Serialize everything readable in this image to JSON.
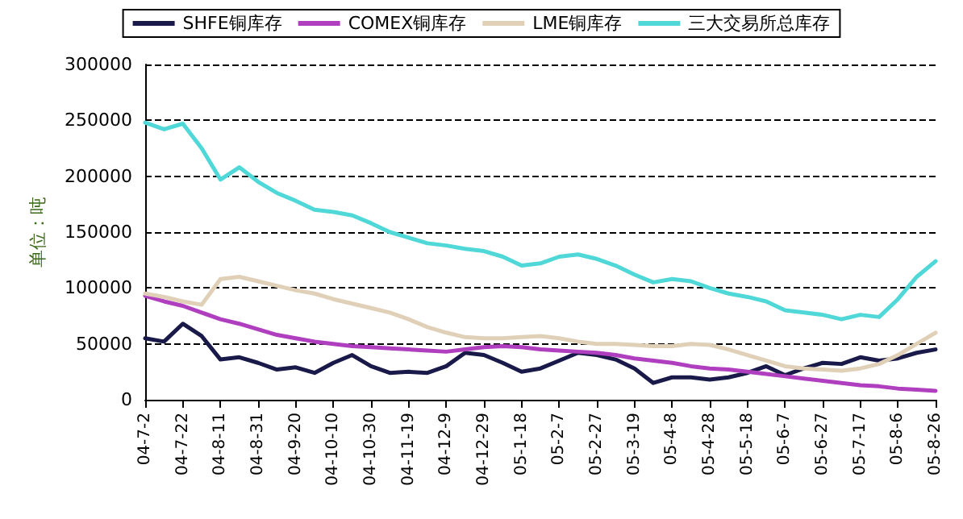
{
  "chart_data": {
    "type": "line",
    "ylabel": "单位：吨",
    "categories": [
      "04-7-2",
      null,
      "04-7-22",
      null,
      "04-8-11",
      null,
      "04-8-31",
      null,
      "04-9-20",
      null,
      "04-10-10",
      null,
      "04-10-30",
      null,
      "04-11-19",
      null,
      "04-12-9",
      null,
      "04-12-29",
      null,
      "05-1-18",
      null,
      "05-2-7",
      null,
      "05-2-27",
      null,
      "05-3-19",
      null,
      "05-4-8",
      null,
      "05-4-28",
      null,
      "05-5-18",
      null,
      "05-6-7",
      null,
      "05-6-27",
      null,
      "05-7-17",
      null,
      "05-8-6",
      null,
      "05-8-26"
    ],
    "series": [
      {
        "name": "SHFE铜库存",
        "color": "#1a1a4a",
        "values": [
          55000,
          52000,
          68000,
          57000,
          36000,
          38000,
          33000,
          27000,
          29000,
          24000,
          33000,
          40000,
          30000,
          24000,
          25000,
          24000,
          30000,
          42000,
          40000,
          33000,
          25000,
          28000,
          35000,
          42000,
          40000,
          36000,
          28000,
          15000,
          20000,
          20000,
          18000,
          20000,
          24000,
          30000,
          22000,
          28000,
          33000,
          32000,
          38000,
          35000,
          37000,
          42000,
          45000
        ]
      },
      {
        "name": "COMEX铜库存",
        "color": "#b03fc0",
        "values": [
          93000,
          88000,
          84000,
          78000,
          72000,
          68000,
          63000,
          58000,
          55000,
          52000,
          50000,
          48000,
          47000,
          46000,
          45000,
          44000,
          43000,
          45000,
          47000,
          48000,
          47000,
          45000,
          44000,
          43000,
          42000,
          40000,
          37000,
          35000,
          33000,
          30000,
          28000,
          27000,
          25000,
          23000,
          21000,
          19000,
          17000,
          15000,
          13000,
          12000,
          10000,
          9000,
          8000
        ]
      },
      {
        "name": "LME铜库存",
        "color": "#e0d0b8",
        "values": [
          95000,
          92000,
          88000,
          85000,
          108000,
          110000,
          106000,
          102000,
          98000,
          95000,
          90000,
          86000,
          82000,
          78000,
          72000,
          65000,
          60000,
          56000,
          55000,
          55000,
          56000,
          57000,
          55000,
          52000,
          50000,
          50000,
          49000,
          48000,
          48000,
          50000,
          49000,
          45000,
          40000,
          35000,
          30000,
          28000,
          27000,
          26000,
          28000,
          32000,
          40000,
          50000,
          60000
        ]
      },
      {
        "name": "三大交易所总库存",
        "color": "#50d8d8",
        "values": [
          248000,
          242000,
          247000,
          225000,
          197000,
          208000,
          195000,
          185000,
          178000,
          170000,
          168000,
          165000,
          158000,
          150000,
          145000,
          140000,
          138000,
          135000,
          133000,
          128000,
          120000,
          122000,
          128000,
          130000,
          126000,
          120000,
          112000,
          105000,
          108000,
          106000,
          100000,
          95000,
          92000,
          88000,
          80000,
          78000,
          76000,
          72000,
          76000,
          74000,
          90000,
          110000,
          124000
        ]
      }
    ],
    "ylim": [
      0,
      300000
    ],
    "yticks": [
      0,
      50000,
      100000,
      150000,
      200000,
      250000,
      300000
    ],
    "grid": "y",
    "legend": "top",
    "marker": "none",
    "line_style": "solid"
  }
}
